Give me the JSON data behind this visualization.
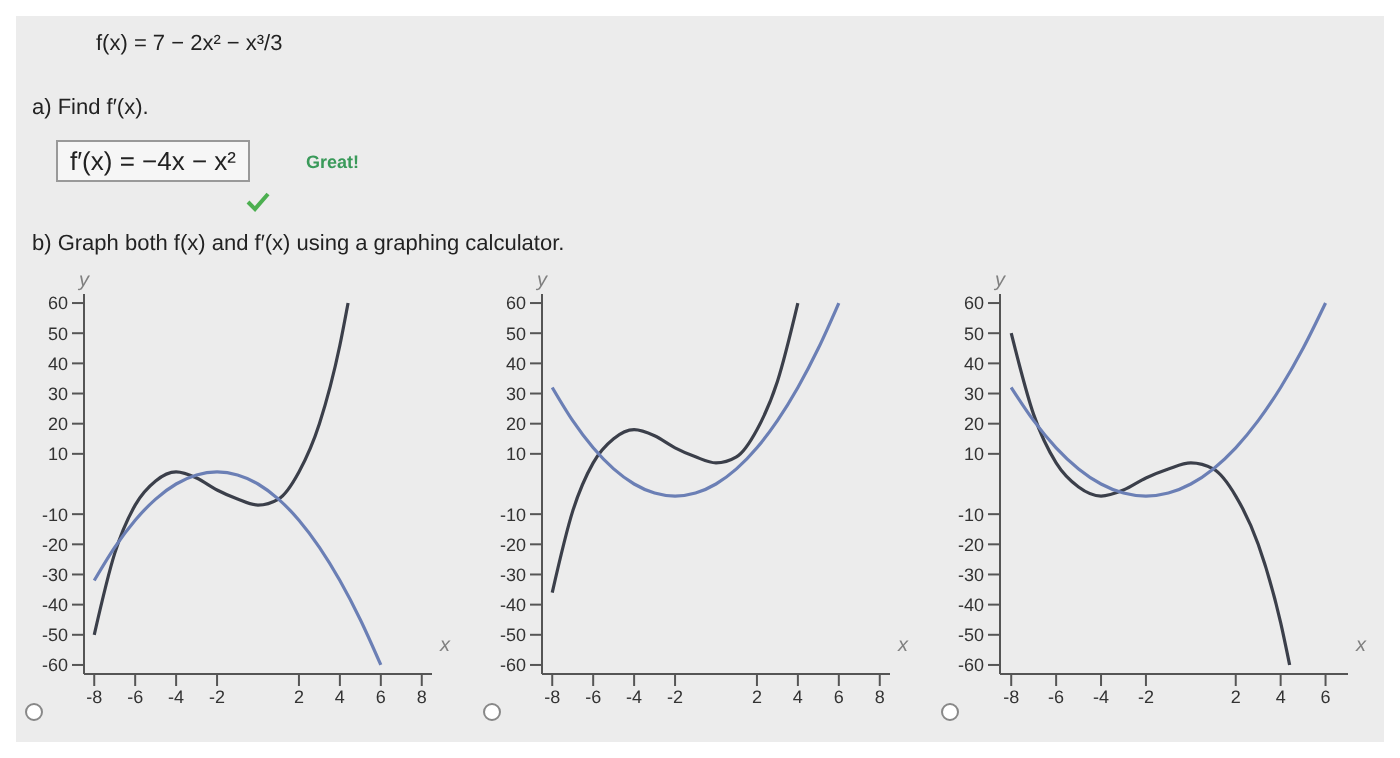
{
  "chart_data": [
    {
      "type": "line",
      "annotations": [
        "f(x) = 7 − 2x² − x³/3",
        "a) Find f′(x).",
        "f′(x) = −4x − x²",
        "Great!",
        "b) Graph both f(x) and f′(x) using a graphing calculator."
      ],
      "xlabel": "x",
      "ylabel": "y",
      "xlim": [
        -8.5,
        8.5
      ],
      "ylim": [
        -63,
        63
      ],
      "xticks": [
        -8,
        -6,
        -4,
        -2,
        2,
        4,
        6,
        8
      ],
      "yticks": [
        -60,
        -50,
        -40,
        -30,
        -20,
        -10,
        10,
        20,
        30,
        40,
        50,
        60
      ],
      "series": [
        {
          "color": "#3b3f4a",
          "x": [
            -8,
            -7,
            -6,
            -5,
            -4,
            -3,
            -2,
            -1,
            0,
            1,
            2,
            3,
            4,
            4.4
          ],
          "values": [
            -50,
            -23,
            -7,
            1,
            4,
            2,
            -2,
            -5,
            -7,
            -5,
            4,
            20,
            46,
            60
          ]
        },
        {
          "color": "#6b7fb5",
          "x": [
            -8,
            -7,
            -6,
            -5,
            -4,
            -3,
            -2,
            -1,
            0,
            1,
            2,
            3,
            4,
            5,
            6
          ],
          "values": [
            -32,
            -21,
            -12,
            -5,
            0,
            3,
            4,
            3,
            0,
            -5,
            -12,
            -21,
            -32,
            -45,
            -60
          ]
        }
      ]
    },
    {
      "type": "line",
      "xlabel": "x",
      "ylabel": "y",
      "xlim": [
        -8.5,
        8.5
      ],
      "ylim": [
        -63,
        63
      ],
      "xticks": [
        -8,
        -6,
        -4,
        -2,
        2,
        4,
        6,
        8
      ],
      "yticks": [
        -60,
        -50,
        -40,
        -30,
        -20,
        -10,
        10,
        20,
        30,
        40,
        50,
        60
      ],
      "series": [
        {
          "color": "#3b3f4a",
          "x": [
            -8,
            -7,
            -6,
            -5,
            -4,
            -3,
            -2,
            -1,
            0,
            1,
            2,
            3,
            4
          ],
          "values": [
            -36,
            -9,
            7,
            15,
            18,
            16,
            12,
            9,
            7,
            9,
            18,
            34,
            60
          ]
        },
        {
          "color": "#6b7fb5",
          "x": [
            -8,
            -7,
            -6,
            -5,
            -4,
            -3,
            -2,
            -1,
            0,
            1,
            2,
            3,
            4,
            5,
            6
          ],
          "values": [
            32,
            21,
            12,
            5,
            0,
            -3,
            -4,
            -3,
            0,
            5,
            12,
            21,
            32,
            45,
            60
          ]
        }
      ]
    },
    {
      "type": "line",
      "xlabel": "x",
      "ylabel": "y",
      "xlim": [
        -8.5,
        7
      ],
      "ylim": [
        -63,
        63
      ],
      "xticks": [
        -8,
        -6,
        -4,
        -2,
        2,
        4,
        6
      ],
      "yticks": [
        -60,
        -50,
        -40,
        -30,
        -20,
        -10,
        10,
        20,
        30,
        40,
        50,
        60
      ],
      "series": [
        {
          "color": "#3b3f4a",
          "x": [
            -8,
            -7,
            -6,
            -5,
            -4,
            -3,
            -2,
            -1,
            0,
            1,
            2,
            3,
            4,
            4.4
          ],
          "values": [
            50,
            23,
            7,
            -1,
            -4,
            -2,
            2,
            5,
            7,
            5,
            -4,
            -20,
            -46,
            -60
          ]
        },
        {
          "color": "#6b7fb5",
          "x": [
            -8,
            -7,
            -6,
            -5,
            -4,
            -3,
            -2,
            -1,
            0,
            1,
            2,
            3,
            4,
            5,
            6
          ],
          "values": [
            32,
            21,
            12,
            5,
            0,
            -3,
            -4,
            -3,
            0,
            5,
            12,
            21,
            32,
            45,
            60
          ]
        }
      ]
    }
  ]
}
